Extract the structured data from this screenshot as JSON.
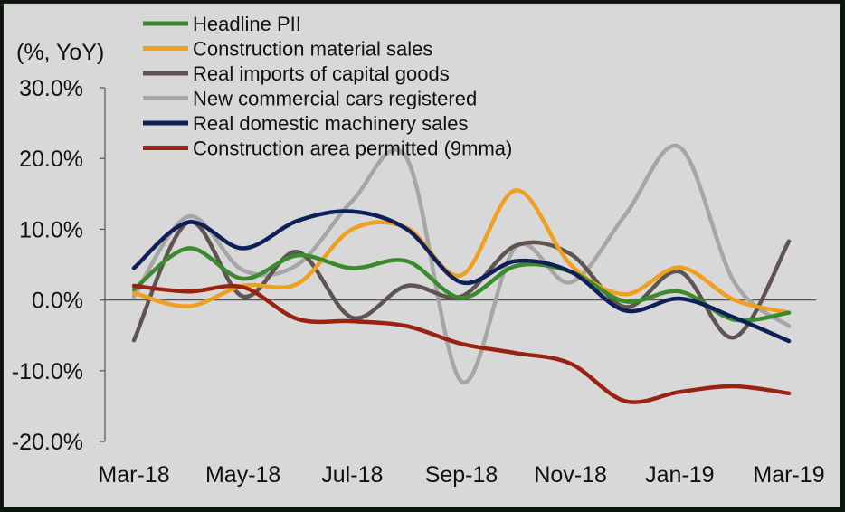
{
  "chart_data": {
    "type": "line",
    "ylabel": "(%, YoY)",
    "ylim": [
      -20,
      30
    ],
    "y_ticks": [
      30,
      20,
      10,
      0,
      -10,
      -20
    ],
    "y_tick_labels": [
      "30.0%",
      "20.0%",
      "10.0%",
      "0.0%",
      "-10.0%",
      "-20.0%"
    ],
    "x": [
      "Mar-18",
      "Apr-18",
      "May-18",
      "Jun-18",
      "Jul-18",
      "Aug-18",
      "Sep-18",
      "Oct-18",
      "Nov-18",
      "Dec-18",
      "Jan-19",
      "Feb-19",
      "Mar-19"
    ],
    "x_tick_labels": [
      "Mar-18",
      "May-18",
      "Jul-18",
      "Sep-18",
      "Nov-18",
      "Jan-19",
      "Mar-19"
    ],
    "legend_position": "top",
    "series": [
      {
        "name": "Headline PII",
        "color": "#3a8a2e",
        "values": [
          1.5,
          7.3,
          3.0,
          6.3,
          4.5,
          5.5,
          0.3,
          4.8,
          4.0,
          -0.2,
          1.2,
          -2.8,
          -1.8
        ]
      },
      {
        "name": "Construction material sales",
        "color": "#f0a020",
        "values": [
          1.0,
          -0.9,
          2.0,
          2.3,
          10.0,
          10.2,
          3.5,
          15.5,
          5.0,
          0.8,
          4.6,
          0.0,
          -1.8
        ]
      },
      {
        "name": "Real imports of capital goods",
        "color": "#5e5450",
        "values": [
          -5.7,
          11.0,
          0.5,
          6.8,
          -2.5,
          2.0,
          0.5,
          7.7,
          6.5,
          -1.0,
          4.0,
          -5.3,
          8.3
        ]
      },
      {
        "name": "New commercial cars registered",
        "color": "#a6a6a6",
        "values": [
          0.5,
          11.8,
          4.2,
          5.0,
          14.0,
          20.0,
          -11.5,
          7.5,
          2.5,
          12.0,
          21.6,
          2.5,
          -3.7
        ]
      },
      {
        "name": "Real domestic machinery sales",
        "color": "#0e1f5a",
        "values": [
          4.5,
          11.0,
          7.3,
          11.2,
          12.5,
          10.0,
          2.5,
          5.5,
          4.0,
          -1.5,
          0.2,
          -2.5,
          -5.8
        ]
      },
      {
        "name": "Construction area permitted (9mma)",
        "color": "#9a2210",
        "values": [
          2.0,
          1.2,
          1.8,
          -2.7,
          -3.0,
          -3.7,
          -6.2,
          -7.5,
          -9.0,
          -14.3,
          -13.0,
          -12.2,
          -13.2
        ]
      }
    ]
  }
}
